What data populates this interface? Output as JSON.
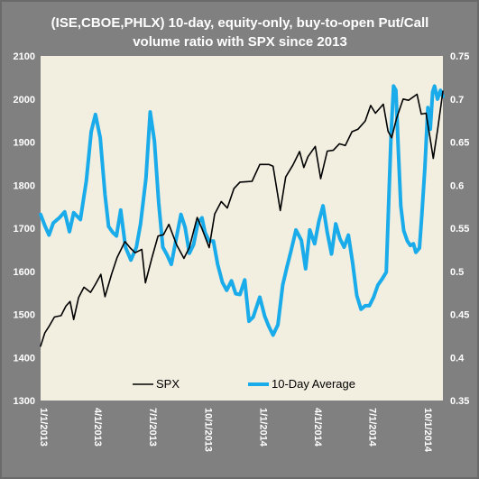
{
  "chart_data": {
    "type": "line",
    "title_lines": [
      "(ISE,CBOE,PHLX) 10-day, equity-only, buy-to-open Put/Call",
      "volume ratio with SPX since 2013"
    ],
    "x_start": "2013-01-01",
    "x_end": "2014-10-31",
    "x_tick_labels": [
      "1/1/2013",
      "4/1/2013",
      "7/1/2013",
      "10/1/2013",
      "1/1/2014",
      "4/1/2014",
      "7/1/2014",
      "10/1/2014"
    ],
    "x_tick_dates": [
      "2013-01-01",
      "2013-04-01",
      "2013-07-01",
      "2013-10-01",
      "2014-01-01",
      "2014-04-01",
      "2014-07-01",
      "2014-10-01"
    ],
    "y_left_ticks": [
      "1300",
      "1400",
      "1500",
      "1600",
      "1700",
      "1800",
      "1900",
      "2000",
      "2100"
    ],
    "y_left_range": [
      1300,
      2100
    ],
    "y_right_ticks": [
      "0.35",
      "0.4",
      "0.45",
      "0.5",
      "0.55",
      "0.6",
      "0.65",
      "0.7",
      "0.75"
    ],
    "y_right_range": [
      0.35,
      0.75
    ],
    "grid": false,
    "legend_position": "bottom",
    "colors": {
      "frame": "#808080",
      "plot_bg": "#f2eee0",
      "spx": "#000000",
      "ratio": "#1aacea"
    },
    "series": [
      {
        "name": "SPX",
        "axis": "left",
        "points": [
          [
            "2013-01-01",
            1426
          ],
          [
            "2013-01-08",
            1457
          ],
          [
            "2013-01-15",
            1472
          ],
          [
            "2013-01-24",
            1494
          ],
          [
            "2013-02-04",
            1497
          ],
          [
            "2013-02-12",
            1519
          ],
          [
            "2013-02-19",
            1530
          ],
          [
            "2013-02-25",
            1488
          ],
          [
            "2013-03-05",
            1539
          ],
          [
            "2013-03-14",
            1563
          ],
          [
            "2013-03-25",
            1551
          ],
          [
            "2013-04-02",
            1570
          ],
          [
            "2013-04-11",
            1593
          ],
          [
            "2013-04-18",
            1541
          ],
          [
            "2013-04-29",
            1594
          ],
          [
            "2013-05-08",
            1632
          ],
          [
            "2013-05-21",
            1669
          ],
          [
            "2013-05-30",
            1654
          ],
          [
            "2013-06-07",
            1643
          ],
          [
            "2013-06-18",
            1651
          ],
          [
            "2013-06-24",
            1573
          ],
          [
            "2013-07-05",
            1632
          ],
          [
            "2013-07-15",
            1682
          ],
          [
            "2013-07-24",
            1685
          ],
          [
            "2013-08-02",
            1709
          ],
          [
            "2013-08-15",
            1661
          ],
          [
            "2013-08-27",
            1630
          ],
          [
            "2013-09-05",
            1655
          ],
          [
            "2013-09-18",
            1725
          ],
          [
            "2013-09-26",
            1699
          ],
          [
            "2013-10-08",
            1655
          ],
          [
            "2013-10-17",
            1733
          ],
          [
            "2013-10-28",
            1762
          ],
          [
            "2013-11-07",
            1747
          ],
          [
            "2013-11-18",
            1792
          ],
          [
            "2013-11-28",
            1807
          ],
          [
            "2013-12-09",
            1808
          ],
          [
            "2013-12-18",
            1809
          ],
          [
            "2013-12-31",
            1848
          ],
          [
            "2014-01-15",
            1848
          ],
          [
            "2014-01-22",
            1844
          ],
          [
            "2014-02-03",
            1741
          ],
          [
            "2014-02-12",
            1819
          ],
          [
            "2014-02-24",
            1847
          ],
          [
            "2014-03-07",
            1878
          ],
          [
            "2014-03-14",
            1841
          ],
          [
            "2014-03-21",
            1866
          ],
          [
            "2014-04-02",
            1890
          ],
          [
            "2014-04-11",
            1815
          ],
          [
            "2014-04-22",
            1879
          ],
          [
            "2014-05-02",
            1881
          ],
          [
            "2014-05-12",
            1896
          ],
          [
            "2014-05-22",
            1892
          ],
          [
            "2014-06-02",
            1924
          ],
          [
            "2014-06-12",
            1930
          ],
          [
            "2014-06-24",
            1949
          ],
          [
            "2014-07-03",
            1985
          ],
          [
            "2014-07-11",
            1967
          ],
          [
            "2014-07-24",
            1988
          ],
          [
            "2014-08-01",
            1925
          ],
          [
            "2014-08-07",
            1910
          ],
          [
            "2014-08-15",
            1955
          ],
          [
            "2014-08-26",
            2000
          ],
          [
            "2014-09-04",
            1997
          ],
          [
            "2014-09-18",
            2011
          ],
          [
            "2014-09-25",
            1965
          ],
          [
            "2014-10-03",
            1967
          ],
          [
            "2014-10-10",
            1906
          ],
          [
            "2014-10-15",
            1862
          ],
          [
            "2014-10-22",
            1927
          ],
          [
            "2014-10-31",
            2018
          ]
        ]
      },
      {
        "name": "10-Day Average",
        "axis": "right",
        "points": [
          [
            "2013-01-01",
            0.566
          ],
          [
            "2013-01-08",
            0.553
          ],
          [
            "2013-01-15",
            0.542
          ],
          [
            "2013-01-22",
            0.556
          ],
          [
            "2013-02-01",
            0.562
          ],
          [
            "2013-02-10",
            0.569
          ],
          [
            "2013-02-18",
            0.546
          ],
          [
            "2013-02-25",
            0.568
          ],
          [
            "2013-03-08",
            0.56
          ],
          [
            "2013-03-18",
            0.605
          ],
          [
            "2013-03-26",
            0.662
          ],
          [
            "2013-04-02",
            0.682
          ],
          [
            "2013-04-10",
            0.655
          ],
          [
            "2013-04-18",
            0.589
          ],
          [
            "2013-04-24",
            0.552
          ],
          [
            "2013-05-01",
            0.545
          ],
          [
            "2013-05-07",
            0.541
          ],
          [
            "2013-05-14",
            0.571
          ],
          [
            "2013-05-22",
            0.528
          ],
          [
            "2013-05-31",
            0.513
          ],
          [
            "2013-06-09",
            0.528
          ],
          [
            "2013-06-16",
            0.555
          ],
          [
            "2013-06-25",
            0.608
          ],
          [
            "2013-07-02",
            0.685
          ],
          [
            "2013-07-09",
            0.651
          ],
          [
            "2013-07-16",
            0.58
          ],
          [
            "2013-07-23",
            0.528
          ],
          [
            "2013-07-30",
            0.519
          ],
          [
            "2013-08-06",
            0.508
          ],
          [
            "2013-08-15",
            0.541
          ],
          [
            "2013-08-22",
            0.566
          ],
          [
            "2013-08-29",
            0.551
          ],
          [
            "2013-09-05",
            0.521
          ],
          [
            "2013-09-12",
            0.531
          ],
          [
            "2013-09-19",
            0.556
          ],
          [
            "2013-09-26",
            0.562
          ],
          [
            "2013-10-01",
            0.545
          ],
          [
            "2013-10-08",
            0.535
          ],
          [
            "2013-10-15",
            0.535
          ],
          [
            "2013-10-22",
            0.508
          ],
          [
            "2013-10-30",
            0.487
          ],
          [
            "2013-11-06",
            0.478
          ],
          [
            "2013-11-14",
            0.489
          ],
          [
            "2013-11-21",
            0.474
          ],
          [
            "2013-11-28",
            0.473
          ],
          [
            "2013-12-06",
            0.49
          ],
          [
            "2013-12-13",
            0.442
          ],
          [
            "2013-12-20",
            0.447
          ],
          [
            "2013-12-31",
            0.47
          ],
          [
            "2014-01-08",
            0.448
          ],
          [
            "2014-01-15",
            0.436
          ],
          [
            "2014-01-22",
            0.426
          ],
          [
            "2014-01-30",
            0.438
          ],
          [
            "2014-02-07",
            0.484
          ],
          [
            "2014-02-14",
            0.505
          ],
          [
            "2014-02-21",
            0.524
          ],
          [
            "2014-03-01",
            0.548
          ],
          [
            "2014-03-10",
            0.536
          ],
          [
            "2014-03-17",
            0.503
          ],
          [
            "2014-03-24",
            0.548
          ],
          [
            "2014-04-01",
            0.532
          ],
          [
            "2014-04-08",
            0.558
          ],
          [
            "2014-04-15",
            0.576
          ],
          [
            "2014-04-22",
            0.545
          ],
          [
            "2014-04-29",
            0.52
          ],
          [
            "2014-05-06",
            0.555
          ],
          [
            "2014-05-13",
            0.538
          ],
          [
            "2014-05-20",
            0.528
          ],
          [
            "2014-05-27",
            0.542
          ],
          [
            "2014-06-03",
            0.51
          ],
          [
            "2014-06-10",
            0.472
          ],
          [
            "2014-06-17",
            0.456
          ],
          [
            "2014-06-24",
            0.46
          ],
          [
            "2014-07-01",
            0.46
          ],
          [
            "2014-07-08",
            0.47
          ],
          [
            "2014-07-15",
            0.484
          ],
          [
            "2014-07-22",
            0.491
          ],
          [
            "2014-07-29",
            0.499
          ],
          [
            "2014-08-02",
            0.58
          ],
          [
            "2014-08-06",
            0.66
          ],
          [
            "2014-08-10",
            0.715
          ],
          [
            "2014-08-14",
            0.71
          ],
          [
            "2014-08-18",
            0.64
          ],
          [
            "2014-08-22",
            0.576
          ],
          [
            "2014-08-27",
            0.547
          ],
          [
            "2014-09-02",
            0.535
          ],
          [
            "2014-09-07",
            0.53
          ],
          [
            "2014-09-12",
            0.532
          ],
          [
            "2014-09-16",
            0.522
          ],
          [
            "2014-09-22",
            0.527
          ],
          [
            "2014-09-26",
            0.565
          ],
          [
            "2014-10-01",
            0.62
          ],
          [
            "2014-10-06",
            0.69
          ],
          [
            "2014-10-10",
            0.665
          ],
          [
            "2014-10-14",
            0.708
          ],
          [
            "2014-10-17",
            0.715
          ],
          [
            "2014-10-22",
            0.7
          ],
          [
            "2014-10-27",
            0.71
          ],
          [
            "2014-10-31",
            0.703
          ]
        ]
      }
    ]
  }
}
